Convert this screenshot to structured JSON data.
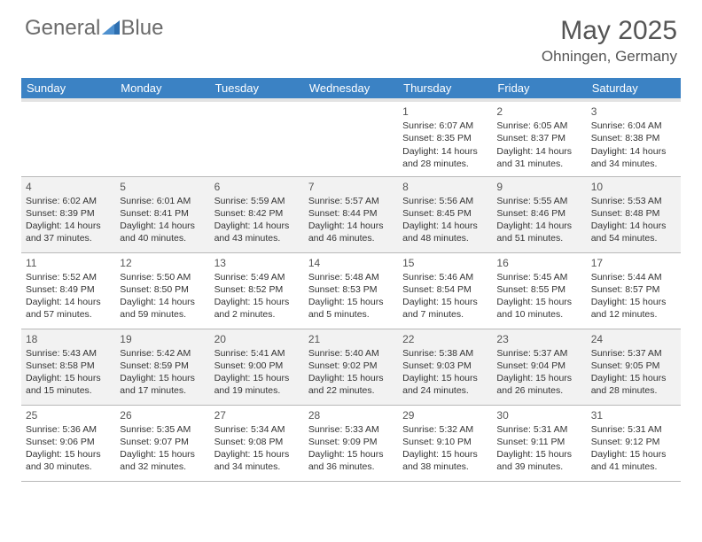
{
  "logo": {
    "text1": "General",
    "text2": "Blue"
  },
  "title": "May 2025",
  "location": "Ohningen, Germany",
  "colors": {
    "header_bg": "#3b82c4",
    "header_text": "#ffffff",
    "shade_bg": "#f2f2f2",
    "border": "#b8b8b8",
    "logo_gray": "#6b6b6b",
    "logo_blue": "#2e6fb0"
  },
  "day_headers": [
    "Sunday",
    "Monday",
    "Tuesday",
    "Wednesday",
    "Thursday",
    "Friday",
    "Saturday"
  ],
  "weeks": [
    {
      "shaded": false,
      "days": [
        null,
        null,
        null,
        null,
        {
          "n": "1",
          "sunrise": "6:07 AM",
          "sunset": "8:35 PM",
          "daylight": "14 hours and 28 minutes."
        },
        {
          "n": "2",
          "sunrise": "6:05 AM",
          "sunset": "8:37 PM",
          "daylight": "14 hours and 31 minutes."
        },
        {
          "n": "3",
          "sunrise": "6:04 AM",
          "sunset": "8:38 PM",
          "daylight": "14 hours and 34 minutes."
        }
      ]
    },
    {
      "shaded": true,
      "days": [
        {
          "n": "4",
          "sunrise": "6:02 AM",
          "sunset": "8:39 PM",
          "daylight": "14 hours and 37 minutes."
        },
        {
          "n": "5",
          "sunrise": "6:01 AM",
          "sunset": "8:41 PM",
          "daylight": "14 hours and 40 minutes."
        },
        {
          "n": "6",
          "sunrise": "5:59 AM",
          "sunset": "8:42 PM",
          "daylight": "14 hours and 43 minutes."
        },
        {
          "n": "7",
          "sunrise": "5:57 AM",
          "sunset": "8:44 PM",
          "daylight": "14 hours and 46 minutes."
        },
        {
          "n": "8",
          "sunrise": "5:56 AM",
          "sunset": "8:45 PM",
          "daylight": "14 hours and 48 minutes."
        },
        {
          "n": "9",
          "sunrise": "5:55 AM",
          "sunset": "8:46 PM",
          "daylight": "14 hours and 51 minutes."
        },
        {
          "n": "10",
          "sunrise": "5:53 AM",
          "sunset": "8:48 PM",
          "daylight": "14 hours and 54 minutes."
        }
      ]
    },
    {
      "shaded": false,
      "days": [
        {
          "n": "11",
          "sunrise": "5:52 AM",
          "sunset": "8:49 PM",
          "daylight": "14 hours and 57 minutes."
        },
        {
          "n": "12",
          "sunrise": "5:50 AM",
          "sunset": "8:50 PM",
          "daylight": "14 hours and 59 minutes."
        },
        {
          "n": "13",
          "sunrise": "5:49 AM",
          "sunset": "8:52 PM",
          "daylight": "15 hours and 2 minutes."
        },
        {
          "n": "14",
          "sunrise": "5:48 AM",
          "sunset": "8:53 PM",
          "daylight": "15 hours and 5 minutes."
        },
        {
          "n": "15",
          "sunrise": "5:46 AM",
          "sunset": "8:54 PM",
          "daylight": "15 hours and 7 minutes."
        },
        {
          "n": "16",
          "sunrise": "5:45 AM",
          "sunset": "8:55 PM",
          "daylight": "15 hours and 10 minutes."
        },
        {
          "n": "17",
          "sunrise": "5:44 AM",
          "sunset": "8:57 PM",
          "daylight": "15 hours and 12 minutes."
        }
      ]
    },
    {
      "shaded": true,
      "days": [
        {
          "n": "18",
          "sunrise": "5:43 AM",
          "sunset": "8:58 PM",
          "daylight": "15 hours and 15 minutes."
        },
        {
          "n": "19",
          "sunrise": "5:42 AM",
          "sunset": "8:59 PM",
          "daylight": "15 hours and 17 minutes."
        },
        {
          "n": "20",
          "sunrise": "5:41 AM",
          "sunset": "9:00 PM",
          "daylight": "15 hours and 19 minutes."
        },
        {
          "n": "21",
          "sunrise": "5:40 AM",
          "sunset": "9:02 PM",
          "daylight": "15 hours and 22 minutes."
        },
        {
          "n": "22",
          "sunrise": "5:38 AM",
          "sunset": "9:03 PM",
          "daylight": "15 hours and 24 minutes."
        },
        {
          "n": "23",
          "sunrise": "5:37 AM",
          "sunset": "9:04 PM",
          "daylight": "15 hours and 26 minutes."
        },
        {
          "n": "24",
          "sunrise": "5:37 AM",
          "sunset": "9:05 PM",
          "daylight": "15 hours and 28 minutes."
        }
      ]
    },
    {
      "shaded": false,
      "days": [
        {
          "n": "25",
          "sunrise": "5:36 AM",
          "sunset": "9:06 PM",
          "daylight": "15 hours and 30 minutes."
        },
        {
          "n": "26",
          "sunrise": "5:35 AM",
          "sunset": "9:07 PM",
          "daylight": "15 hours and 32 minutes."
        },
        {
          "n": "27",
          "sunrise": "5:34 AM",
          "sunset": "9:08 PM",
          "daylight": "15 hours and 34 minutes."
        },
        {
          "n": "28",
          "sunrise": "5:33 AM",
          "sunset": "9:09 PM",
          "daylight": "15 hours and 36 minutes."
        },
        {
          "n": "29",
          "sunrise": "5:32 AM",
          "sunset": "9:10 PM",
          "daylight": "15 hours and 38 minutes."
        },
        {
          "n": "30",
          "sunrise": "5:31 AM",
          "sunset": "9:11 PM",
          "daylight": "15 hours and 39 minutes."
        },
        {
          "n": "31",
          "sunrise": "5:31 AM",
          "sunset": "9:12 PM",
          "daylight": "15 hours and 41 minutes."
        }
      ]
    }
  ],
  "labels": {
    "sunrise": "Sunrise:",
    "sunset": "Sunset:",
    "daylight": "Daylight:"
  }
}
